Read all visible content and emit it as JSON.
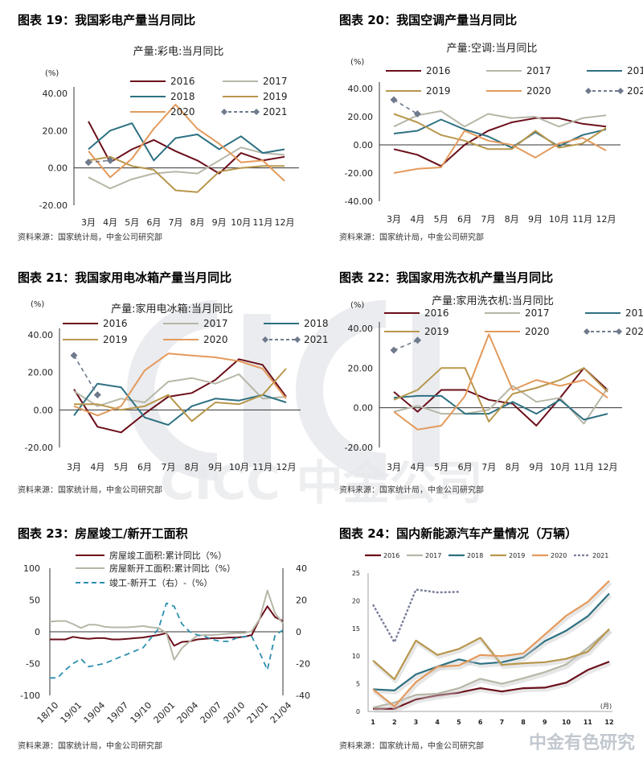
{
  "watermark": {
    "text": "CICC 中金公司"
  },
  "corner_logo": {
    "text": "中金有色研究"
  },
  "chart_data": [
    {
      "id": "p19",
      "type": "line",
      "figure_label": "图表 19：我国彩电产量当月同比",
      "title": "产量:彩电:当月同比",
      "ylabel": "(%)",
      "source": "资料来源：国家统计局，中金公司研究部",
      "categories": [
        "3月",
        "4月",
        "5月",
        "6月",
        "7月",
        "8月",
        "9月",
        "10月",
        "11月",
        "12月"
      ],
      "ylim": [
        -20,
        40
      ],
      "yticks": [
        -20,
        0,
        20,
        40
      ],
      "ytick_labels": [
        "-20.00",
        "0.00",
        "20.00",
        "40.00"
      ],
      "series": [
        {
          "name": "2016",
          "color": "#6b0f1a",
          "values": [
            25,
            3,
            10,
            15,
            9,
            4,
            -3,
            8,
            4,
            6
          ]
        },
        {
          "name": "2017",
          "color": "#b7b7a8",
          "values": [
            -5,
            -11,
            -6,
            -3,
            -2,
            -3,
            4,
            11,
            8,
            7
          ]
        },
        {
          "name": "2018",
          "color": "#2e7182",
          "values": [
            10,
            20,
            24,
            4,
            16,
            18,
            10,
            17,
            8,
            10
          ]
        },
        {
          "name": "2019",
          "color": "#b8974d",
          "values": [
            4,
            6,
            1,
            -1,
            -12,
            -13,
            -2,
            0,
            1,
            1
          ]
        },
        {
          "name": "2020",
          "color": "#e39a5c",
          "values": [
            9,
            -5,
            5,
            21,
            34,
            21,
            13,
            3,
            4,
            -7
          ]
        },
        {
          "name": "2021",
          "color": "#6f7a8c",
          "dashed": true,
          "marker": "diamond",
          "values": [
            3,
            4,
            null,
            null,
            null,
            null,
            null,
            null,
            null,
            null
          ]
        }
      ]
    },
    {
      "id": "p20",
      "type": "line",
      "figure_label": "图表 20：我国空调产量当月同比",
      "title": "产量:空调:当月同比",
      "ylabel": "(%)",
      "source": "资料来源：国家统计局，中金公司研究部",
      "categories": [
        "3月",
        "4月",
        "5月",
        "6月",
        "7月",
        "8月",
        "9月",
        "10月",
        "11月",
        "12月"
      ],
      "ylim": [
        -40,
        40
      ],
      "yticks": [
        -40,
        -20,
        0,
        20,
        40
      ],
      "ytick_labels": [
        "-40.00",
        "-20.00",
        "0.00",
        "20.00",
        "40.00"
      ],
      "series": [
        {
          "name": "2016",
          "color": "#6b0f1a",
          "values": [
            -3,
            -7,
            -15,
            0,
            10,
            16,
            19,
            19,
            15,
            13
          ]
        },
        {
          "name": "2017",
          "color": "#b7b7a8",
          "values": [
            13,
            21,
            24,
            13,
            22,
            19,
            20,
            13,
            19,
            21
          ]
        },
        {
          "name": "2018",
          "color": "#2e7182",
          "values": [
            8,
            10,
            18,
            11,
            6,
            -2,
            9,
            -1,
            7,
            11
          ]
        },
        {
          "name": "2019",
          "color": "#b8974d",
          "values": [
            22,
            16,
            7,
            3,
            -3,
            -3,
            10,
            -2,
            1,
            12
          ]
        },
        {
          "name": "2020",
          "color": "#e39a5c",
          "values": [
            -20,
            -17,
            -16,
            10,
            3,
            0,
            -9,
            1,
            5,
            -4
          ]
        },
        {
          "name": "2021",
          "color": "#6f7a8c",
          "dashed": true,
          "marker": "diamond",
          "values": [
            32,
            22,
            null,
            null,
            null,
            null,
            null,
            null,
            null,
            null
          ]
        }
      ]
    },
    {
      "id": "p21",
      "type": "line",
      "figure_label": "图表 21：我国家用电冰箱产量当月同比",
      "title": "产量:家用电冰箱:当月同比",
      "ylabel": "(%)",
      "source": "资料来源：国家统计局，中金公司研究部",
      "categories": [
        "3月",
        "4月",
        "5月",
        "6月",
        "7月",
        "8月",
        "9月",
        "10月",
        "11月",
        "12月"
      ],
      "ylim": [
        -20,
        40
      ],
      "yticks": [
        -20,
        0,
        20,
        40
      ],
      "ytick_labels": [
        "-20.00",
        "0.00",
        "20.00",
        "40.00"
      ],
      "series": [
        {
          "name": "2016",
          "color": "#6b0f1a",
          "values": [
            11,
            -9,
            -12,
            -2,
            7,
            9,
            16,
            27,
            24,
            7
          ]
        },
        {
          "name": "2017",
          "color": "#b7b7a8",
          "values": [
            10,
            2,
            6,
            4,
            15,
            17,
            14,
            19,
            6,
            7
          ]
        },
        {
          "name": "2018",
          "color": "#2e7182",
          "values": [
            -3,
            14,
            12,
            -4,
            -8,
            2,
            6,
            5,
            8,
            4
          ]
        },
        {
          "name": "2019",
          "color": "#b8974d",
          "values": [
            3,
            3,
            0,
            2,
            8,
            -6,
            4,
            3,
            8,
            22
          ]
        },
        {
          "name": "2020",
          "color": "#e39a5c",
          "values": [
            2,
            -3,
            2,
            21,
            30,
            29,
            28,
            26,
            22,
            6
          ]
        },
        {
          "name": "2021",
          "color": "#6f7a8c",
          "dashed": true,
          "marker": "diamond",
          "values": [
            29,
            8,
            null,
            null,
            null,
            null,
            null,
            null,
            null,
            null
          ]
        }
      ]
    },
    {
      "id": "p22",
      "type": "line",
      "figure_label": "图表 22：我国家用洗衣机产量当月同比",
      "title": "产量:家用洗衣机:当月同比",
      "ylabel": "(%)",
      "source": "资料来源：国家统计局，中金公司研究部",
      "categories": [
        "3月",
        "4月",
        "5月",
        "6月",
        "7月",
        "8月",
        "9月",
        "10月",
        "11月",
        "12月"
      ],
      "ylim": [
        -20,
        40
      ],
      "yticks": [
        -20,
        0,
        20,
        40
      ],
      "ytick_labels": [
        "-20.00",
        "0.00",
        "20.00",
        "40.00"
      ],
      "series": [
        {
          "name": "2016",
          "color": "#6b0f1a",
          "values": [
            8,
            -2,
            9,
            9,
            4,
            2,
            -9,
            5,
            20,
            9
          ]
        },
        {
          "name": "2017",
          "color": "#b7b7a8",
          "values": [
            -2,
            1,
            -3,
            -3,
            -1,
            11,
            3,
            5,
            -8,
            10
          ]
        },
        {
          "name": "2018",
          "color": "#2e7182",
          "values": [
            5,
            6,
            6,
            -3,
            -3,
            3,
            -3,
            4,
            -6,
            -3
          ]
        },
        {
          "name": "2019",
          "color": "#b8974d",
          "values": [
            4,
            9,
            20,
            20,
            -7,
            7,
            10,
            14,
            20,
            8
          ]
        },
        {
          "name": "2020",
          "color": "#e39a5c",
          "values": [
            -2,
            -11,
            -9,
            6,
            37,
            9,
            14,
            11,
            14,
            5
          ]
        },
        {
          "name": "2021",
          "color": "#6f7a8c",
          "dashed": true,
          "marker": "diamond",
          "values": [
            29,
            34,
            null,
            null,
            null,
            null,
            null,
            null,
            null,
            null
          ]
        }
      ]
    },
    {
      "id": "p23",
      "type": "line",
      "figure_label": "图表 23：房屋竣工/新开工面积",
      "ylabel": "",
      "source": "资料来源：国家统计局，中金公司研究部",
      "x_tick_labels": [
        "18/10",
        "19/01",
        "19/04",
        "19/07",
        "19/10",
        "20/01",
        "20/04",
        "20/07",
        "20/10",
        "21/01",
        "21/04"
      ],
      "x_tick_positions": [
        0,
        3,
        6,
        9,
        12,
        15,
        18,
        21,
        24,
        27,
        30
      ],
      "n_points": 31,
      "ylim_left": [
        -100,
        100
      ],
      "yticks_left": [
        -100,
        -50,
        0,
        50,
        100
      ],
      "ytick_labels_left": [
        "-100",
        "-50",
        "0",
        "50",
        "100"
      ],
      "ylim_right": [
        -40,
        40
      ],
      "yticks_right": [
        -40,
        -20,
        0,
        20,
        40
      ],
      "ytick_labels_right": [
        "-40",
        "-20",
        "0",
        "20",
        "40"
      ],
      "series": [
        {
          "name": "房屋竣工面积:累计同比（%）",
          "color": "#6b0f1a",
          "axis": "left",
          "values": [
            -12,
            -12,
            -12,
            -8,
            -10,
            -11,
            -10,
            -10,
            -12,
            -12,
            -11,
            -10,
            -9,
            -7,
            -5,
            -2,
            -22,
            -16,
            -15,
            -12,
            -11,
            -10,
            -10,
            -9,
            -9,
            -8,
            -5,
            20,
            40,
            23,
            17
          ]
        },
        {
          "name": "房屋新开工面积:累计同比（%）",
          "color": "#b7b7a8",
          "axis": "left",
          "values": [
            16,
            17,
            17,
            12,
            6,
            11,
            11,
            8,
            7,
            7,
            7,
            8,
            9,
            7,
            6,
            -2,
            -44,
            -26,
            -15,
            -6,
            -5,
            -5,
            -4,
            -3,
            -2,
            -2,
            1,
            20,
            65,
            29,
            13
          ]
        },
        {
          "name": "竣工-新开工（右）-（%）",
          "color": "#2e8fb0",
          "axis": "right",
          "dashed": true,
          "values": [
            -29,
            -29,
            -24,
            -20,
            -17,
            -22,
            -21,
            -20,
            -18,
            -16,
            -14,
            -12,
            -10,
            -4,
            2,
            18,
            16,
            5,
            0,
            -2,
            -3,
            -5,
            -6,
            -6,
            -4,
            -3,
            -3,
            -13,
            -24,
            -2,
            1
          ]
        }
      ]
    },
    {
      "id": "p24",
      "type": "line",
      "figure_label": "图表 24：国内新能源汽车产量情况（万辆）",
      "source": "资料来源：国家统计局，中金公司研究部",
      "x_unit_label": "(月)",
      "categories": [
        "1",
        "2",
        "3",
        "4",
        "5",
        "6",
        "7",
        "8",
        "9",
        "10",
        "11",
        "12"
      ],
      "ylim": [
        0,
        25
      ],
      "yticks": [
        0,
        5,
        10,
        15,
        20,
        25
      ],
      "ytick_labels": [
        "0",
        "5",
        "10",
        "15",
        "20",
        "25"
      ],
      "series": [
        {
          "name": "2016",
          "color": "#6b0f1a",
          "values": [
            0.5,
            0.5,
            2.2,
            2.9,
            3.4,
            4.2,
            3.6,
            4.2,
            4.3,
            5.2,
            7.5,
            9.0
          ]
        },
        {
          "name": "2017",
          "color": "#b7b7a8",
          "values": [
            0.7,
            1.6,
            3.0,
            3.2,
            4.2,
            5.9,
            5.0,
            6.0,
            7.1,
            8.5,
            11.5,
            14.8
          ]
        },
        {
          "name": "2018",
          "color": "#2e7182",
          "values": [
            4.0,
            3.8,
            6.7,
            8.1,
            9.4,
            8.6,
            8.9,
            9.8,
            12.7,
            14.6,
            17.2,
            21.3
          ]
        },
        {
          "name": "2019",
          "color": "#b8974d",
          "values": [
            9.2,
            5.8,
            12.8,
            10.2,
            11.3,
            13.3,
            8.4,
            8.7,
            8.9,
            9.5,
            10.8,
            14.9
          ]
        },
        {
          "name": "2020",
          "color": "#e39a5c",
          "values": [
            4.0,
            0.9,
            5.3,
            8.1,
            8.3,
            10.2,
            10.0,
            10.5,
            13.9,
            17.3,
            19.8,
            23.6
          ]
        },
        {
          "name": "2021",
          "color": "#7b7f9c",
          "dashed": true,
          "values": [
            19.3,
            12.5,
            22.0,
            21.5,
            21.6,
            null,
            null,
            null,
            null,
            null,
            null,
            null
          ]
        }
      ]
    }
  ]
}
